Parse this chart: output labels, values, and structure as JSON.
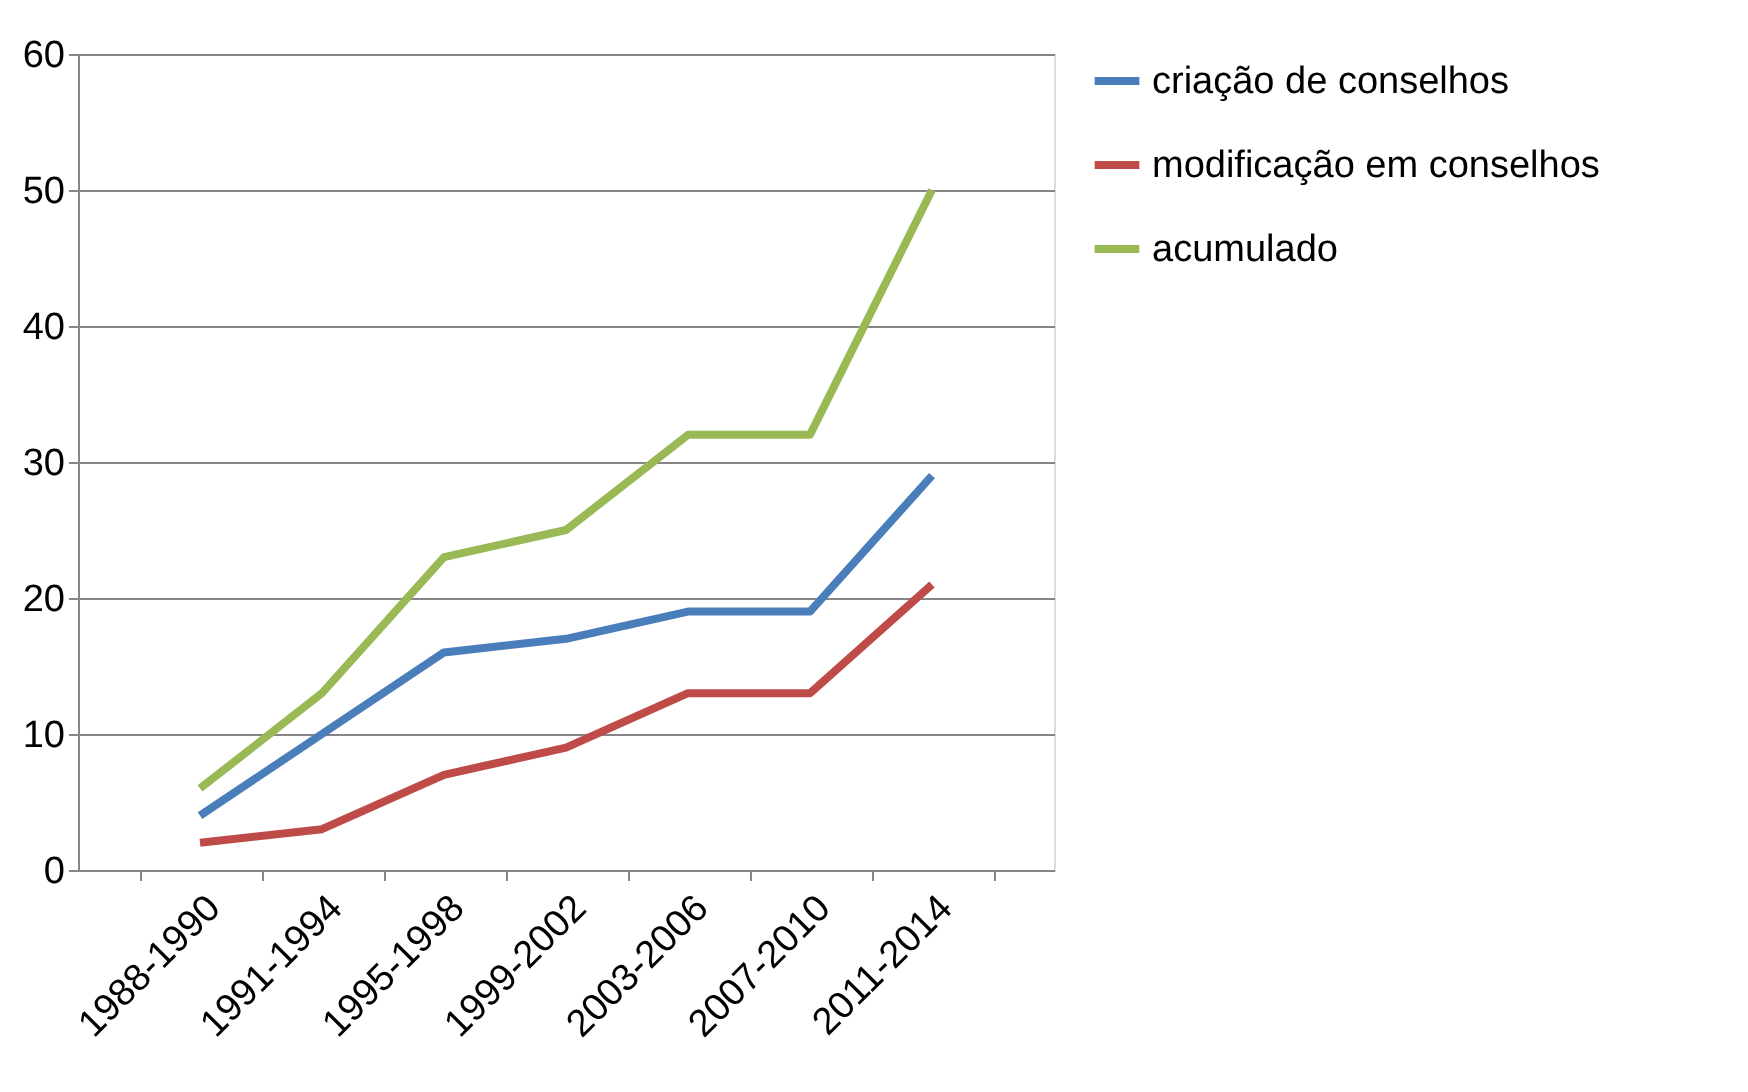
{
  "chart_data": {
    "type": "line",
    "categories": [
      "1988-1990",
      "1991-1994",
      "1995-1998",
      "1999-2002",
      "2003-2006",
      "2007-2010",
      "2011-2014"
    ],
    "series": [
      {
        "name": "criação de conselhos",
        "color": "#4a7ebb",
        "values": [
          4,
          10,
          16,
          17,
          19,
          19,
          29
        ]
      },
      {
        "name": "modificação em conselhos",
        "color": "#be4b48",
        "values": [
          2,
          3,
          7,
          9,
          13,
          13,
          21
        ]
      },
      {
        "name": "acumulado",
        "color": "#98b954",
        "values": [
          6,
          13,
          23,
          25,
          32,
          32,
          50
        ]
      }
    ],
    "ylim": [
      0,
      60
    ],
    "yticks": [
      0,
      10,
      20,
      30,
      40,
      50,
      60
    ],
    "grid": "y",
    "legend": "right",
    "marker": "none",
    "line_style": "solid"
  }
}
